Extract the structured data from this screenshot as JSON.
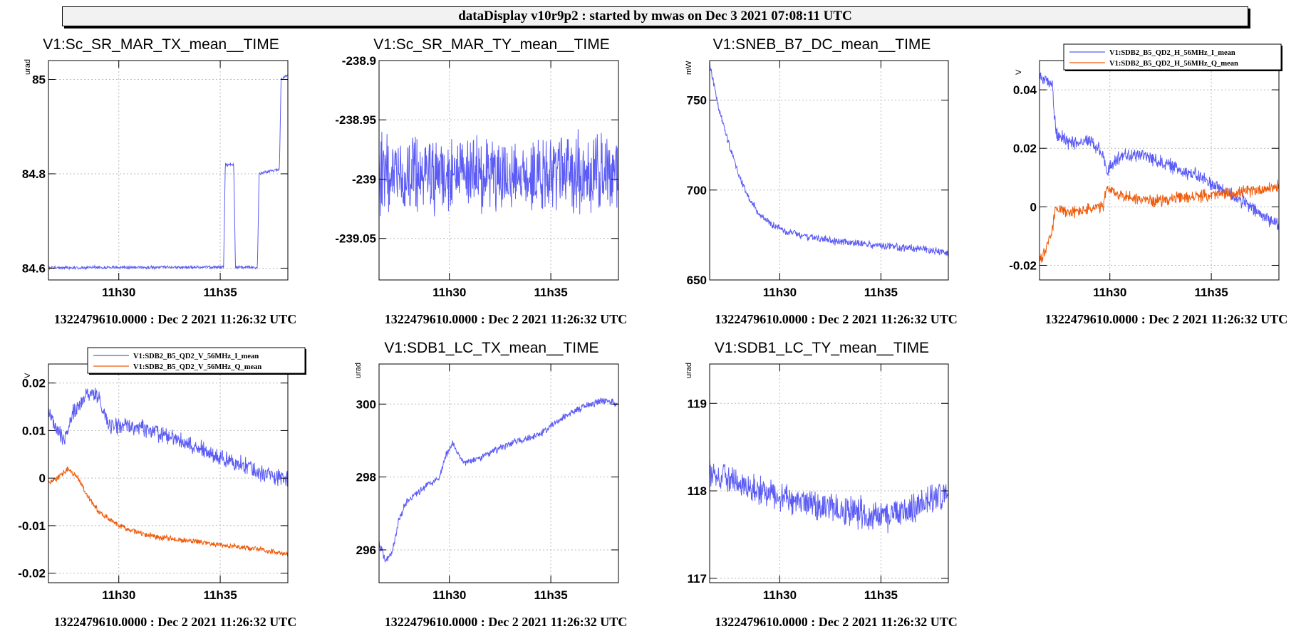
{
  "banner": "dataDisplay v10r9p2 : started by mwas on Dec  3 2021 07:08:11 UTC",
  "colors": {
    "blue": "#5b5bf5",
    "orange": "#f05a0a",
    "grid": "#bbbbbb",
    "frame": "#000000"
  },
  "x_tick_labels": [
    "11h30",
    "11h35"
  ],
  "chart_data": [
    {
      "type": "line",
      "title": "V1:Sc_SR_MAR_TX_mean__TIME",
      "ylabel": "urad",
      "footer": "1322479610.0000 : Dec  2 2021 11:26:32 UTC",
      "xlim": [
        "11:26:32",
        "11:38:20"
      ],
      "ylim": [
        84.575,
        85.04
      ],
      "yticks": [
        84.6,
        84.8,
        85
      ],
      "yticklabels": [
        "84.6",
        "84.8",
        "85"
      ],
      "legend": null,
      "series": [
        {
          "color": "#5b5bf5",
          "noise": 0.004,
          "points": [
            [
              "11:26:32",
              84.601
            ],
            [
              "11:35:10",
              84.602
            ],
            [
              "11:35:15",
              84.82
            ],
            [
              "11:35:40",
              84.82
            ],
            [
              "11:35:45",
              84.602
            ],
            [
              "11:36:50",
              84.602
            ],
            [
              "11:36:55",
              84.8
            ],
            [
              "11:37:55",
              84.81
            ],
            [
              "11:38:00",
              85.0
            ],
            [
              "11:38:20",
              85.01
            ]
          ]
        }
      ]
    },
    {
      "type": "line",
      "title": "V1:Sc_SR_MAR_TY_mean__TIME",
      "ylabel": "",
      "footer": "1322479610.0000 : Dec  2 2021 11:26:32 UTC",
      "xlim": [
        "11:26:32",
        "11:38:20"
      ],
      "ylim": [
        -239.085,
        -238.9
      ],
      "yticks": [
        -239.05,
        -239,
        -238.95,
        -238.9
      ],
      "yticklabels": [
        "-239.05",
        "-239",
        "-238.95",
        "-238.9"
      ],
      "legend": null,
      "series": [
        {
          "color": "#5b5bf5",
          "noise": 0.038,
          "points": [
            [
              "11:26:32",
              -238.995
            ],
            [
              "11:38:20",
              -238.995
            ]
          ]
        }
      ]
    },
    {
      "type": "line",
      "title": "V1:SNEB_B7_DC_mean__TIME",
      "ylabel": "mW",
      "footer": "1322479610.0000 : Dec  2 2021 11:26:32 UTC",
      "xlim": [
        "11:26:32",
        "11:38:20"
      ],
      "ylim": [
        650,
        772
      ],
      "yticks": [
        650,
        700,
        750
      ],
      "yticklabels": [
        "650",
        "700",
        "750"
      ],
      "legend": null,
      "series": [
        {
          "color": "#5b5bf5",
          "noise": 2.5,
          "points": [
            [
              "11:26:32",
              770
            ],
            [
              "11:27:00",
              745
            ],
            [
              "11:27:30",
              725
            ],
            [
              "11:28:00",
              708
            ],
            [
              "11:28:30",
              695
            ],
            [
              "11:29:00",
              686
            ],
            [
              "11:30:00",
              678
            ],
            [
              "11:31:00",
              675
            ],
            [
              "11:32:00",
              673
            ],
            [
              "11:33:00",
              671
            ],
            [
              "11:34:00",
              670
            ],
            [
              "11:35:00",
              669
            ],
            [
              "11:36:00",
              668
            ],
            [
              "11:37:00",
              667
            ],
            [
              "11:38:20",
              665
            ]
          ]
        }
      ]
    },
    {
      "type": "line",
      "title": "",
      "ylabel": "V",
      "footer": "1322479610.0000 : Dec  2 2021 11:26:32 UTC",
      "xlim": [
        "11:26:32",
        "11:38:20"
      ],
      "ylim": [
        -0.025,
        0.05
      ],
      "yticks": [
        -0.02,
        0,
        0.02,
        0.04
      ],
      "yticklabels": [
        "-0.02",
        "0",
        "0.02",
        "0.04"
      ],
      "legend": [
        "V1:SDB2_B5_QD2_H_56MHz_I_mean",
        "V1:SDB2_B5_QD2_H_56MHz_Q_mean"
      ],
      "series": [
        {
          "name": "V1:SDB2_B5_QD2_H_56MHz_I_mean",
          "color": "#5b5bf5",
          "noise": 0.003,
          "points": [
            [
              "11:26:32",
              0.044
            ],
            [
              "11:27:10",
              0.042
            ],
            [
              "11:27:20",
              0.025
            ],
            [
              "11:28:00",
              0.022
            ],
            [
              "11:29:00",
              0.023
            ],
            [
              "11:29:40",
              0.018
            ],
            [
              "11:29:50",
              0.012
            ],
            [
              "11:30:30",
              0.017
            ],
            [
              "11:31:30",
              0.018
            ],
            [
              "11:33:00",
              0.014
            ],
            [
              "11:34:30",
              0.01
            ],
            [
              "11:35:30",
              0.006
            ],
            [
              "11:36:30",
              0.002
            ],
            [
              "11:37:30",
              -0.003
            ],
            [
              "11:38:20",
              -0.006
            ]
          ]
        },
        {
          "name": "V1:SDB2_B5_QD2_H_56MHz_Q_mean",
          "color": "#f05a0a",
          "noise": 0.0025,
          "points": [
            [
              "11:26:32",
              -0.018
            ],
            [
              "11:26:50",
              -0.015
            ],
            [
              "11:27:10",
              -0.008
            ],
            [
              "11:27:20",
              0.0
            ],
            [
              "11:28:00",
              -0.002
            ],
            [
              "11:29:40",
              0.0
            ],
            [
              "11:29:50",
              0.006
            ],
            [
              "11:30:30",
              0.004
            ],
            [
              "11:32:00",
              0.002
            ],
            [
              "11:33:30",
              0.003
            ],
            [
              "11:35:00",
              0.004
            ],
            [
              "11:36:30",
              0.005
            ],
            [
              "11:38:20",
              0.007
            ]
          ]
        }
      ]
    },
    {
      "type": "line",
      "title": "",
      "ylabel": "V",
      "footer": "1322479610.0000 : Dec  2 2021 11:26:32 UTC",
      "xlim": [
        "11:26:32",
        "11:38:20"
      ],
      "ylim": [
        -0.022,
        0.024
      ],
      "yticks": [
        -0.02,
        -0.01,
        0,
        0.01,
        0.02
      ],
      "yticklabels": [
        "-0.02",
        "-0.01",
        "0",
        "0.01",
        "0.02"
      ],
      "legend": [
        "V1:SDB2_B5_QD2_V_56MHz_I_mean",
        "V1:SDB2_B5_QD2_V_56MHz_Q_mean"
      ],
      "series": [
        {
          "name": "V1:SDB2_B5_QD2_V_56MHz_I_mean",
          "color": "#5b5bf5",
          "noise": 0.0022,
          "points": [
            [
              "11:26:32",
              0.014
            ],
            [
              "11:27:00",
              0.01
            ],
            [
              "11:27:20",
              0.008
            ],
            [
              "11:27:40",
              0.013
            ],
            [
              "11:28:30",
              0.018
            ],
            [
              "11:29:00",
              0.017
            ],
            [
              "11:29:30",
              0.011
            ],
            [
              "11:30:30",
              0.011
            ],
            [
              "11:31:30",
              0.01
            ],
            [
              "11:33:00",
              0.008
            ],
            [
              "11:34:30",
              0.005
            ],
            [
              "11:36:00",
              0.003
            ],
            [
              "11:37:00",
              0.001
            ],
            [
              "11:38:20",
              0.0
            ]
          ]
        },
        {
          "name": "V1:SDB2_B5_QD2_V_56MHz_Q_mean",
          "color": "#f05a0a",
          "noise": 0.0007,
          "points": [
            [
              "11:26:32",
              -0.001
            ],
            [
              "11:27:00",
              0.0
            ],
            [
              "11:27:30",
              0.002
            ],
            [
              "11:28:00",
              0.0
            ],
            [
              "11:28:30",
              -0.004
            ],
            [
              "11:29:00",
              -0.007
            ],
            [
              "11:30:00",
              -0.01
            ],
            [
              "11:31:00",
              -0.0115
            ],
            [
              "11:32:00",
              -0.0125
            ],
            [
              "11:33:00",
              -0.013
            ],
            [
              "11:34:00",
              -0.0135
            ],
            [
              "11:35:00",
              -0.014
            ],
            [
              "11:36:00",
              -0.0145
            ],
            [
              "11:37:00",
              -0.015
            ],
            [
              "11:38:20",
              -0.016
            ]
          ]
        }
      ]
    },
    {
      "type": "line",
      "title": "V1:SDB1_LC_TX_mean__TIME",
      "ylabel": "urad",
      "footer": "1322479610.0000 : Dec  2 2021 11:26:32 UTC",
      "xlim": [
        "11:26:32",
        "11:38:20"
      ],
      "ylim": [
        295.1,
        301.1
      ],
      "yticks": [
        296,
        298,
        300
      ],
      "yticklabels": [
        "296",
        "298",
        "300"
      ],
      "legend": null,
      "series": [
        {
          "color": "#5b5bf5",
          "noise": 0.12,
          "points": [
            [
              "11:26:32",
              296.2
            ],
            [
              "11:26:50",
              295.7
            ],
            [
              "11:27:10",
              295.9
            ],
            [
              "11:27:30",
              296.8
            ],
            [
              "11:27:50",
              297.3
            ],
            [
              "11:28:30",
              297.6
            ],
            [
              "11:29:00",
              297.8
            ],
            [
              "11:29:30",
              298.0
            ],
            [
              "11:29:50",
              298.6
            ],
            [
              "11:30:10",
              298.9
            ],
            [
              "11:30:40",
              298.4
            ],
            [
              "11:31:30",
              298.5
            ],
            [
              "11:32:30",
              298.8
            ],
            [
              "11:33:30",
              299.0
            ],
            [
              "11:34:30",
              299.2
            ],
            [
              "11:35:30",
              299.6
            ],
            [
              "11:36:30",
              299.9
            ],
            [
              "11:37:30",
              300.1
            ],
            [
              "11:38:20",
              300.0
            ]
          ]
        }
      ]
    },
    {
      "type": "line",
      "title": "V1:SDB1_LC_TY_mean__TIME",
      "ylabel": "urad",
      "footer": "1322479610.0000 : Dec  2 2021 11:26:32 UTC",
      "xlim": [
        "11:26:32",
        "11:38:20"
      ],
      "ylim": [
        116.95,
        119.45
      ],
      "yticks": [
        117,
        118,
        119
      ],
      "yticklabels": [
        "117",
        "118",
        "119"
      ],
      "legend": null,
      "series": [
        {
          "color": "#5b5bf5",
          "noise": 0.22,
          "points": [
            [
              "11:26:32",
              118.2
            ],
            [
              "11:29:00",
              118.0
            ],
            [
              "11:31:00",
              117.9
            ],
            [
              "11:33:00",
              117.8
            ],
            [
              "11:35:00",
              117.7
            ],
            [
              "11:36:30",
              117.8
            ],
            [
              "11:38:20",
              118.0
            ]
          ]
        }
      ]
    }
  ]
}
